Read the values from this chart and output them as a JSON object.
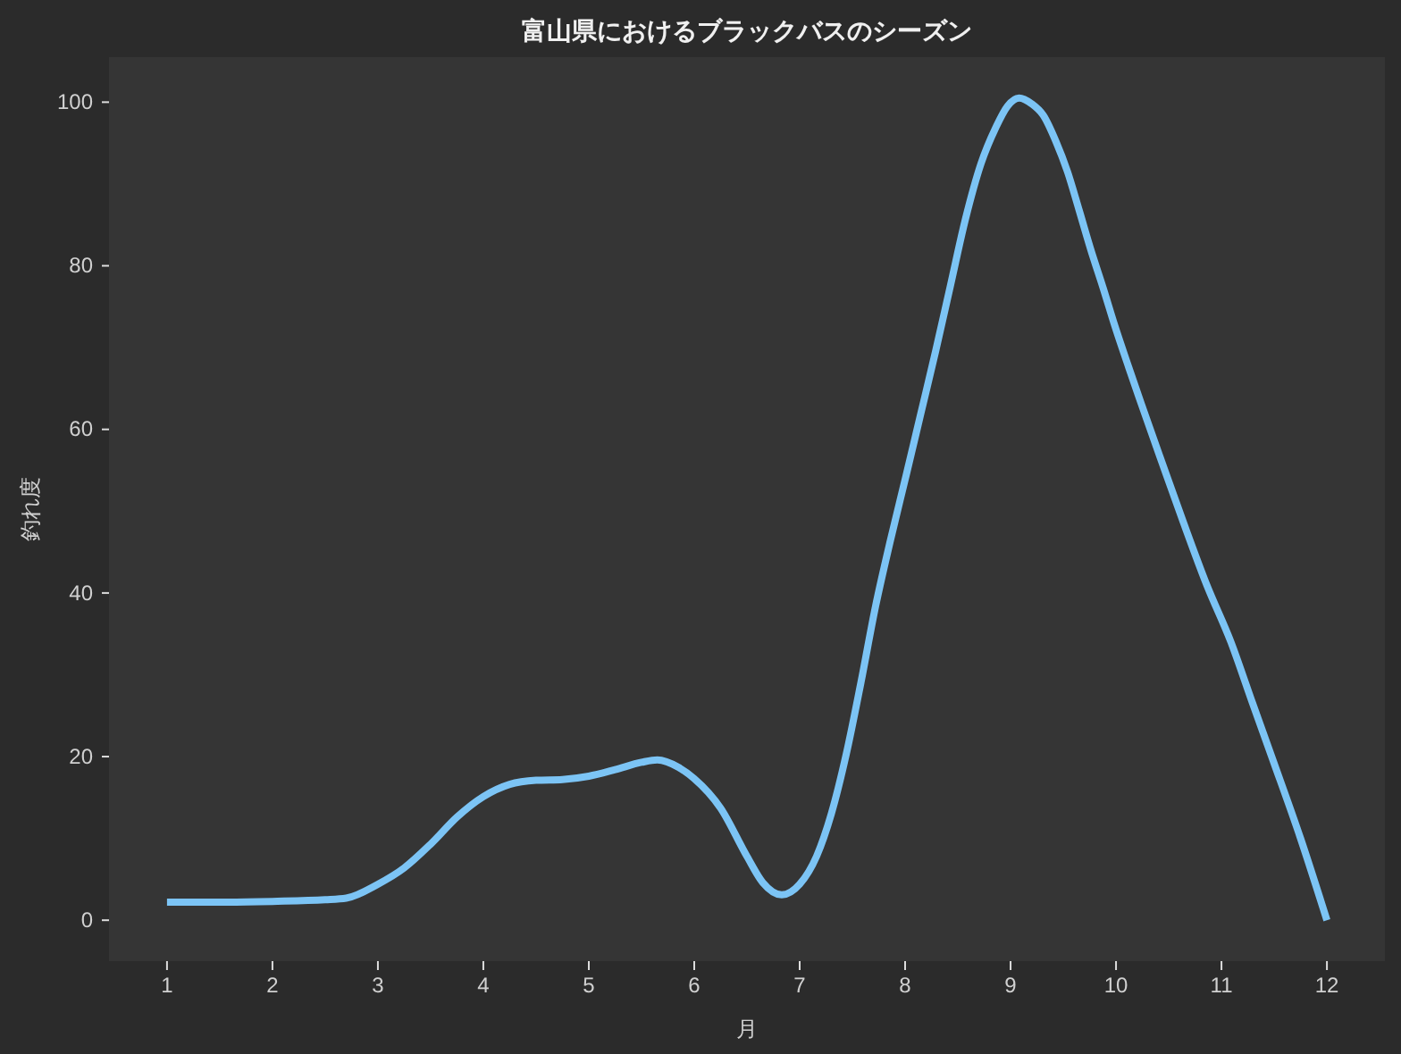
{
  "chart_data": {
    "type": "line",
    "title": "富山県におけるブラックバスのシーズン",
    "xlabel": "月",
    "ylabel": "釣れ度",
    "x": [
      1,
      1.5,
      2,
      2.5,
      2.7,
      3,
      3.25,
      3.5,
      3.75,
      4,
      4.25,
      4.5,
      4.75,
      5,
      5.25,
      5.5,
      5.65,
      5.85,
      6,
      6.25,
      6.5,
      6.65,
      6.83,
      7,
      7.16,
      7.3,
      7.44,
      7.58,
      7.72,
      7.86,
      8.01,
      8.15,
      8.29,
      8.43,
      8.57,
      8.72,
      8.86,
      8.97,
      9.08,
      9.2,
      9.31,
      9.43,
      9.54,
      9.65,
      9.76,
      9.88,
      9.99,
      10.12,
      10.24,
      10.44,
      10.64,
      10.86,
      11.09,
      11.29,
      11.49,
      11.75,
      12
    ],
    "series": [
      {
        "color": "#7cc4f5",
        "values": [
          2.2,
          2.2,
          2.3,
          2.5,
          2.7,
          4.4,
          6.4,
          9.3,
          12.6,
          15.1,
          16.6,
          17.1,
          17.2,
          17.6,
          18.4,
          19.3,
          19.6,
          18.7,
          17.3,
          13.7,
          7.8,
          4.6,
          3.1,
          4.4,
          7.8,
          13,
          20.2,
          29,
          38.4,
          46.4,
          54.4,
          62,
          69.6,
          77.6,
          85.6,
          92.5,
          96.9,
          99.5,
          100.5,
          99.8,
          98.4,
          95.2,
          91.5,
          86.8,
          82,
          77.2,
          72.6,
          67.6,
          63.1,
          55.8,
          48.6,
          41,
          34,
          26.7,
          19.5,
          10,
          0
        ]
      }
    ],
    "xlim": [
      0.45,
      12.55
    ],
    "ylim": [
      -5,
      105.5
    ],
    "xticks": [
      1,
      2,
      3,
      4,
      5,
      6,
      7,
      8,
      9,
      10,
      11,
      12
    ],
    "yticks": [
      0,
      20,
      40,
      60,
      80,
      100
    ],
    "grid": false,
    "marker": "none",
    "line_style": "solid"
  }
}
